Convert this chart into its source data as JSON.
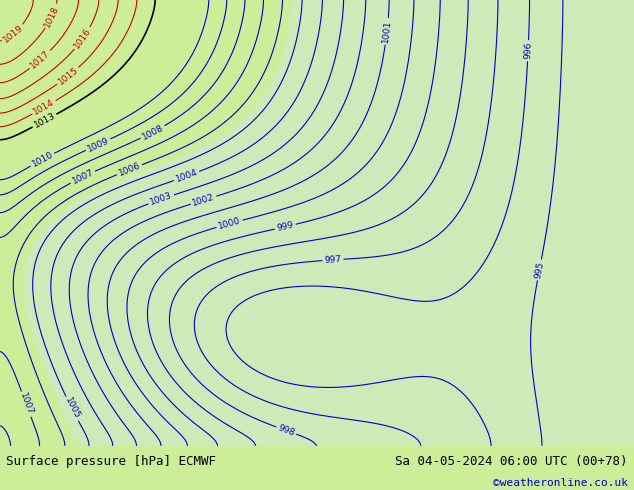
{
  "title_left": "Surface pressure [hPa] ECMWF",
  "title_right": "Sa 04-05-2024 06:00 UTC (00+78)",
  "copyright": "©weatheronline.co.uk",
  "bg_color": "#ccee99",
  "land_color": "#ccee99",
  "sea_color": "#c8e8c8",
  "contour_blue_color": "#0000cc",
  "contour_red_color": "#cc0000",
  "contour_black_color": "#000000",
  "text_color_left": "#000000",
  "text_color_right": "#000000",
  "copyright_color": "#0000cc",
  "footer_bg": "#ccee99",
  "figsize": [
    6.34,
    4.9
  ],
  "dpi": 100,
  "blue_levels": [
    995,
    996,
    997,
    998,
    999,
    1000,
    1001,
    1002,
    1003,
    1004,
    1005,
    1006,
    1007,
    1008,
    1009,
    1010
  ],
  "red_levels": [
    1014,
    1015,
    1016,
    1017,
    1018,
    1019
  ],
  "black_levels": [
    1013
  ]
}
